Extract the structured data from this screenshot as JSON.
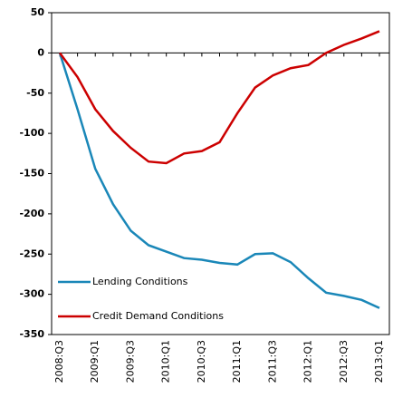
{
  "chart_data": {
    "type": "line",
    "categories": [
      "2008:Q3",
      null,
      "2009:Q1",
      null,
      "2009:Q3",
      null,
      "2010:Q1",
      null,
      "2010:Q3",
      null,
      "2011:Q1",
      null,
      "2011:Q3",
      null,
      "2012:Q1",
      null,
      "2012:Q3",
      null,
      "2013:Q1"
    ],
    "series": [
      {
        "name": "Lending Conditions",
        "color": "#1a87b8",
        "values": [
          0,
          -70,
          -144,
          -188,
          -221,
          -239,
          -247,
          -255,
          -257,
          -261,
          -263,
          -250,
          -249,
          -260,
          -280,
          -298,
          -302,
          -307,
          -317
        ]
      },
      {
        "name": "Credit Demand Conditions",
        "color": "#cc0000",
        "values": [
          0,
          -30,
          -70,
          -97,
          -118,
          -135,
          -137,
          -125,
          -122,
          -111,
          -75,
          -43,
          -28,
          -19,
          -15,
          0,
          10,
          18,
          27
        ]
      }
    ],
    "ylim": [
      -350,
      50
    ],
    "yticks": [
      -350,
      -300,
      -250,
      -200,
      -150,
      -100,
      -50,
      0,
      50
    ],
    "legend": "lower-left"
  }
}
